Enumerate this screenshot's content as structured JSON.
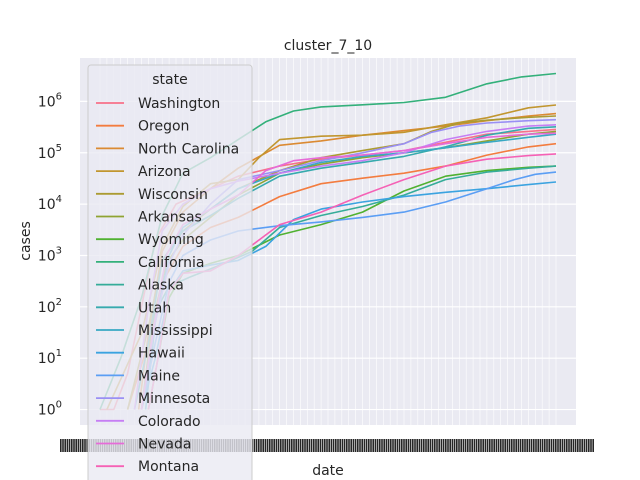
{
  "chart_data": {
    "type": "line",
    "title": "cluster_7_10",
    "xlabel": "date",
    "ylabel": "cases",
    "y_scale": "log",
    "ylim": [
      0.5,
      7000000
    ],
    "y_ticks": [
      {
        "value": 1,
        "base": "10",
        "exp": "0"
      },
      {
        "value": 10,
        "base": "10",
        "exp": "1"
      },
      {
        "value": 100,
        "base": "10",
        "exp": "2"
      },
      {
        "value": 1000,
        "base": "10",
        "exp": "3"
      },
      {
        "value": 10000,
        "base": "10",
        "exp": "4"
      },
      {
        "value": 100000,
        "base": "10",
        "exp": "5"
      },
      {
        "value": 1000000,
        "base": "10",
        "exp": "6"
      }
    ],
    "x_range_days": [
      0,
      330
    ],
    "x_tick_labels_note": "x tick labels overlap into an illegible band",
    "grid": true,
    "background": "#eaeaf2",
    "legend": {
      "title": "state",
      "placement": "upper-left",
      "entries": [
        {
          "name": "Washington",
          "color": "#f77189"
        },
        {
          "name": "Oregon",
          "color": "#f37c3f"
        },
        {
          "name": "North Carolina",
          "color": "#db8a32"
        },
        {
          "name": "Arizona",
          "color": "#c1962f"
        },
        {
          "name": "Wisconsin",
          "color": "#ab9b32"
        },
        {
          "name": "Arkansas",
          "color": "#8fa332"
        },
        {
          "name": "Wyoming",
          "color": "#50b131"
        },
        {
          "name": "California",
          "color": "#33b07a"
        },
        {
          "name": "Alaska",
          "color": "#35ac99"
        },
        {
          "name": "Utah",
          "color": "#37aaae"
        },
        {
          "name": "Mississippi",
          "color": "#38a8c3"
        },
        {
          "name": "Hawaii",
          "color": "#3ba3e0"
        },
        {
          "name": "Maine",
          "color": "#5b9ef4"
        },
        {
          "name": "Minnesota",
          "color": "#9a8ff4"
        },
        {
          "name": "Colorado",
          "color": "#c67ef4"
        },
        {
          "name": "Nevada",
          "color": "#e66bd8"
        },
        {
          "name": "Montana",
          "color": "#f561b5"
        }
      ]
    },
    "series": [
      {
        "name": "Washington",
        "color": "#f77189",
        "points": [
          [
            0,
            1
          ],
          [
            10,
            1
          ],
          [
            20,
            5
          ],
          [
            30,
            100
          ],
          [
            40,
            2000
          ],
          [
            55,
            10000
          ],
          [
            80,
            20000
          ],
          [
            100,
            35000
          ],
          [
            130,
            55000
          ],
          [
            160,
            75000
          ],
          [
            190,
            90000
          ],
          [
            220,
            110000
          ],
          [
            250,
            160000
          ],
          [
            280,
            230000
          ],
          [
            310,
            260000
          ],
          [
            330,
            285000
          ]
        ]
      },
      {
        "name": "Oregon",
        "color": "#f37c3f",
        "points": [
          [
            20,
            1
          ],
          [
            35,
            20
          ],
          [
            45,
            300
          ],
          [
            60,
            1500
          ],
          [
            80,
            3500
          ],
          [
            100,
            5500
          ],
          [
            130,
            14000
          ],
          [
            160,
            25000
          ],
          [
            190,
            32000
          ],
          [
            220,
            40000
          ],
          [
            250,
            55000
          ],
          [
            280,
            90000
          ],
          [
            310,
            130000
          ],
          [
            330,
            150000
          ]
        ]
      },
      {
        "name": "North Carolina",
        "color": "#db8a32",
        "points": [
          [
            28,
            1
          ],
          [
            35,
            30
          ],
          [
            45,
            1200
          ],
          [
            60,
            7000
          ],
          [
            80,
            20000
          ],
          [
            100,
            50000
          ],
          [
            130,
            140000
          ],
          [
            160,
            170000
          ],
          [
            190,
            220000
          ],
          [
            220,
            270000
          ],
          [
            250,
            330000
          ],
          [
            280,
            420000
          ],
          [
            310,
            520000
          ],
          [
            330,
            580000
          ]
        ]
      },
      {
        "name": "Arizona",
        "color": "#c1962f",
        "points": [
          [
            5,
            1
          ],
          [
            30,
            30
          ],
          [
            45,
            1500
          ],
          [
            60,
            9000
          ],
          [
            80,
            25000
          ],
          [
            100,
            30000
          ],
          [
            115,
            80000
          ],
          [
            130,
            180000
          ],
          [
            160,
            210000
          ],
          [
            190,
            220000
          ],
          [
            220,
            250000
          ],
          [
            250,
            350000
          ],
          [
            280,
            480000
          ],
          [
            310,
            750000
          ],
          [
            330,
            850000
          ]
        ]
      },
      {
        "name": "Wisconsin",
        "color": "#ab9b32",
        "points": [
          [
            20,
            1
          ],
          [
            35,
            40
          ],
          [
            45,
            800
          ],
          [
            60,
            3000
          ],
          [
            80,
            8000
          ],
          [
            100,
            20000
          ],
          [
            130,
            45000
          ],
          [
            160,
            80000
          ],
          [
            190,
            110000
          ],
          [
            220,
            150000
          ],
          [
            240,
            260000
          ],
          [
            260,
            380000
          ],
          [
            280,
            430000
          ],
          [
            310,
            490000
          ],
          [
            330,
            520000
          ]
        ]
      },
      {
        "name": "Arkansas",
        "color": "#8fa332",
        "points": [
          [
            30,
            1
          ],
          [
            38,
            50
          ],
          [
            48,
            700
          ],
          [
            60,
            2000
          ],
          [
            80,
            5500
          ],
          [
            100,
            15000
          ],
          [
            130,
            40000
          ],
          [
            160,
            60000
          ],
          [
            190,
            80000
          ],
          [
            220,
            100000
          ],
          [
            250,
            125000
          ],
          [
            280,
            170000
          ],
          [
            310,
            230000
          ],
          [
            330,
            260000
          ]
        ]
      },
      {
        "name": "Wyoming",
        "color": "#50b131",
        "points": [
          [
            35,
            1
          ],
          [
            42,
            10
          ],
          [
            50,
            150
          ],
          [
            60,
            450
          ],
          [
            80,
            700
          ],
          [
            100,
            1000
          ],
          [
            130,
            2500
          ],
          [
            160,
            4000
          ],
          [
            190,
            7000
          ],
          [
            220,
            18000
          ],
          [
            250,
            35000
          ],
          [
            280,
            45000
          ],
          [
            310,
            52000
          ],
          [
            330,
            55000
          ]
        ]
      },
      {
        "name": "California",
        "color": "#33b07a",
        "points": [
          [
            0,
            1
          ],
          [
            15,
            10
          ],
          [
            30,
            150
          ],
          [
            45,
            6000
          ],
          [
            60,
            40000
          ],
          [
            80,
            80000
          ],
          [
            100,
            180000
          ],
          [
            120,
            400000
          ],
          [
            140,
            650000
          ],
          [
            160,
            780000
          ],
          [
            190,
            860000
          ],
          [
            220,
            950000
          ],
          [
            250,
            1200000
          ],
          [
            280,
            2200000
          ],
          [
            305,
            3000000
          ],
          [
            330,
            3500000
          ]
        ]
      },
      {
        "name": "Alaska",
        "color": "#35ac99",
        "points": [
          [
            30,
            1
          ],
          [
            35,
            5
          ],
          [
            40,
            80
          ],
          [
            50,
            250
          ],
          [
            65,
            380
          ],
          [
            90,
            700
          ],
          [
            110,
            1200
          ],
          [
            130,
            3500
          ],
          [
            160,
            6000
          ],
          [
            190,
            9000
          ],
          [
            220,
            15000
          ],
          [
            250,
            30000
          ],
          [
            280,
            42000
          ],
          [
            310,
            50000
          ],
          [
            330,
            55000
          ]
        ]
      },
      {
        "name": "Utah",
        "color": "#37aaae",
        "points": [
          [
            25,
            1
          ],
          [
            35,
            20
          ],
          [
            45,
            800
          ],
          [
            60,
            3000
          ],
          [
            80,
            6000
          ],
          [
            100,
            13000
          ],
          [
            130,
            35000
          ],
          [
            160,
            50000
          ],
          [
            190,
            65000
          ],
          [
            220,
            85000
          ],
          [
            250,
            130000
          ],
          [
            280,
            220000
          ],
          [
            310,
            300000
          ],
          [
            330,
            320000
          ]
        ]
      },
      {
        "name": "Mississippi",
        "color": "#38a8c3",
        "points": [
          [
            33,
            1
          ],
          [
            40,
            50
          ],
          [
            50,
            1000
          ],
          [
            60,
            3500
          ],
          [
            80,
            8000
          ],
          [
            100,
            20000
          ],
          [
            130,
            40000
          ],
          [
            160,
            65000
          ],
          [
            190,
            85000
          ],
          [
            220,
            100000
          ],
          [
            250,
            125000
          ],
          [
            280,
            160000
          ],
          [
            310,
            200000
          ],
          [
            330,
            230000
          ]
        ]
      },
      {
        "name": "Hawaii",
        "color": "#3ba3e0",
        "points": [
          [
            30,
            1
          ],
          [
            40,
            10
          ],
          [
            50,
            200
          ],
          [
            60,
            500
          ],
          [
            80,
            650
          ],
          [
            100,
            800
          ],
          [
            120,
            1500
          ],
          [
            140,
            5000
          ],
          [
            160,
            8000
          ],
          [
            190,
            11000
          ],
          [
            220,
            14000
          ],
          [
            250,
            17000
          ],
          [
            280,
            20000
          ],
          [
            310,
            24000
          ],
          [
            330,
            27000
          ]
        ]
      },
      {
        "name": "Maine",
        "color": "#5b9ef4",
        "points": [
          [
            30,
            1
          ],
          [
            40,
            20
          ],
          [
            50,
            300
          ],
          [
            60,
            1000
          ],
          [
            80,
            2000
          ],
          [
            100,
            3000
          ],
          [
            130,
            3800
          ],
          [
            160,
            4500
          ],
          [
            190,
            5500
          ],
          [
            220,
            7000
          ],
          [
            250,
            11000
          ],
          [
            280,
            20000
          ],
          [
            300,
            30000
          ],
          [
            315,
            38000
          ],
          [
            330,
            42000
          ]
        ]
      },
      {
        "name": "Minnesota",
        "color": "#9a8ff4",
        "points": [
          [
            30,
            1
          ],
          [
            40,
            50
          ],
          [
            50,
            700
          ],
          [
            60,
            2500
          ],
          [
            80,
            10000
          ],
          [
            100,
            30000
          ],
          [
            130,
            45000
          ],
          [
            160,
            70000
          ],
          [
            190,
            100000
          ],
          [
            220,
            150000
          ],
          [
            240,
            250000
          ],
          [
            260,
            330000
          ],
          [
            280,
            380000
          ],
          [
            310,
            420000
          ],
          [
            330,
            440000
          ]
        ]
      },
      {
        "name": "Colorado",
        "color": "#c67ef4",
        "points": [
          [
            25,
            1
          ],
          [
            35,
            100
          ],
          [
            45,
            3000
          ],
          [
            60,
            10000
          ],
          [
            80,
            20000
          ],
          [
            100,
            28000
          ],
          [
            130,
            40000
          ],
          [
            160,
            55000
          ],
          [
            190,
            70000
          ],
          [
            220,
            100000
          ],
          [
            250,
            180000
          ],
          [
            280,
            260000
          ],
          [
            310,
            330000
          ],
          [
            330,
            350000
          ]
        ]
      },
      {
        "name": "Nevada",
        "color": "#e66bd8",
        "points": [
          [
            30,
            1
          ],
          [
            38,
            30
          ],
          [
            48,
            1000
          ],
          [
            60,
            4000
          ],
          [
            80,
            8000
          ],
          [
            100,
            15000
          ],
          [
            120,
            45000
          ],
          [
            140,
            70000
          ],
          [
            160,
            80000
          ],
          [
            190,
            90000
          ],
          [
            220,
            110000
          ],
          [
            250,
            150000
          ],
          [
            280,
            200000
          ],
          [
            310,
            230000
          ],
          [
            330,
            240000
          ]
        ]
      },
      {
        "name": "Montana",
        "color": "#f561b5",
        "points": [
          [
            35,
            1
          ],
          [
            42,
            10
          ],
          [
            50,
            200
          ],
          [
            60,
            450
          ],
          [
            80,
            500
          ],
          [
            100,
            1000
          ],
          [
            130,
            4000
          ],
          [
            160,
            7000
          ],
          [
            190,
            15000
          ],
          [
            220,
            30000
          ],
          [
            250,
            55000
          ],
          [
            280,
            75000
          ],
          [
            310,
            88000
          ],
          [
            330,
            95000
          ]
        ]
      }
    ]
  }
}
